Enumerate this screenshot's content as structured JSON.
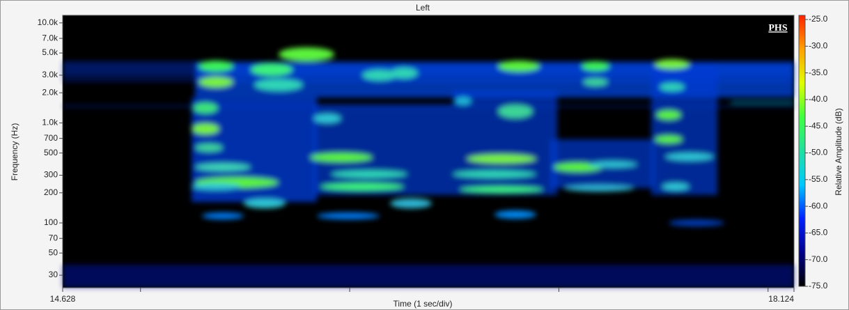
{
  "chart_data": {
    "type": "spectrogram",
    "title": "Left",
    "brand": "PHS",
    "x_label": "Time (1 sec/div)",
    "y_label": "Frequency (Hz)",
    "colorbar_label": "Relative Amplitude (dB)",
    "xlim": [
      14.628,
      18.124
    ],
    "xticks": [
      15,
      16,
      17,
      18
    ],
    "ylim": [
      22.5,
      11900
    ],
    "log_y": true,
    "yticks": [
      30,
      50,
      70,
      100,
      200,
      300,
      500,
      700,
      {
        "value": 1000,
        "label": "1.0k"
      },
      {
        "value": 2000,
        "label": "2.0k"
      },
      {
        "value": 3000,
        "label": "3.0k"
      },
      {
        "value": 5000,
        "label": "5.0k"
      },
      {
        "value": 7000,
        "label": "7.0k"
      },
      {
        "value": 10000,
        "label": "10.0k"
      }
    ],
    "clim": [
      -75,
      -25
    ],
    "cticks": [
      {
        "value": -25,
        "label": "-25.0"
      },
      {
        "value": -30,
        "label": "-30.0"
      },
      {
        "value": -35,
        "label": "-35.0"
      },
      {
        "value": -40,
        "label": "-40.0"
      },
      {
        "value": -45,
        "label": "-45.0"
      },
      {
        "value": -50,
        "label": "-50.0"
      },
      {
        "value": -55,
        "label": "-55.0"
      },
      {
        "value": -60,
        "label": "-60.0"
      },
      {
        "value": -65,
        "label": "-65.0"
      },
      {
        "value": -70,
        "label": "-70.0"
      },
      {
        "value": -75,
        "label": "-75.0"
      }
    ],
    "colorscale": [
      "#000000",
      "#00008a",
      "#0020ff",
      "#00c8ff",
      "#20e0a0",
      "#40ff40",
      "#e0ff00",
      "#ffa000",
      "#ff2000"
    ]
  }
}
